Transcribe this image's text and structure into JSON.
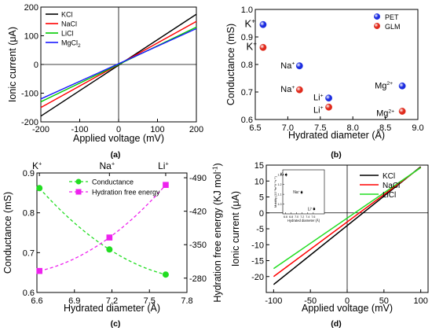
{
  "chart_data": [
    {
      "type": "line",
      "panel_label": "(a)",
      "xlabel": "Applied voltage (mV)",
      "ylabel": "Ionic current (μA)",
      "xlim": [
        -200,
        200
      ],
      "ylim": [
        -200,
        200
      ],
      "xticks": [
        "-200",
        "-100",
        "0",
        "100",
        "200"
      ],
      "yticks": [
        "-200",
        "-100",
        "0",
        "100",
        "200"
      ],
      "legend_position": "top-left",
      "series": [
        {
          "name": "KCl",
          "color": "#000000",
          "x": [
            -200,
            200
          ],
          "y": [
            -180,
            175
          ]
        },
        {
          "name": "NaCl",
          "color": "#ff0000",
          "x": [
            -200,
            200
          ],
          "y": [
            -150,
            150
          ]
        },
        {
          "name": "LiCl",
          "color": "#00cc00",
          "x": [
            -200,
            200
          ],
          "y": [
            -130,
            130
          ]
        },
        {
          "name": "MgCl",
          "name_sub": "2",
          "color": "#1a1aff",
          "x": [
            -200,
            200
          ],
          "y": [
            -120,
            125
          ]
        }
      ]
    },
    {
      "type": "scatter",
      "panel_label": "(b)",
      "xlabel": "Hydrated diameter (Å)",
      "ylabel": "Conductance (mS)",
      "xlim": [
        6.5,
        9.0
      ],
      "ylim": [
        0.6,
        1.0
      ],
      "xticks": [
        "6.5",
        "7.0",
        "7.5",
        "8.0",
        "8.5",
        "9.0"
      ],
      "yticks": [
        "0.6",
        "0.7",
        "0.8",
        "0.9",
        "1.0"
      ],
      "legend_position": "top-right",
      "series": [
        {
          "name": "PET",
          "color": "#1c2de0",
          "x": [
            6.62,
            7.18,
            7.63,
            8.76
          ],
          "y": [
            0.945,
            0.795,
            0.678,
            0.722
          ]
        },
        {
          "name": "GLM",
          "color": "#e02a1c",
          "x": [
            6.62,
            7.18,
            7.63,
            8.76
          ],
          "y": [
            0.862,
            0.708,
            0.645,
            0.63
          ]
        }
      ],
      "point_labels": [
        {
          "base": "K",
          "sup": "+",
          "x": 6.62,
          "y": 0.945
        },
        {
          "base": "K",
          "sup": "+",
          "x": 6.62,
          "y": 0.862
        },
        {
          "base": "Na",
          "sup": "+",
          "x": 7.18,
          "y": 0.795
        },
        {
          "base": "Na",
          "sup": "+",
          "x": 7.18,
          "y": 0.708
        },
        {
          "base": "Li",
          "sup": "+",
          "x": 7.63,
          "y": 0.678
        },
        {
          "base": "Li",
          "sup": "+",
          "x": 7.63,
          "y": 0.645
        },
        {
          "base": "Mg",
          "sup": "2+",
          "x": 8.76,
          "y": 0.722
        },
        {
          "base": "Mg",
          "sup": "2+",
          "x": 8.76,
          "y": 0.63
        }
      ]
    },
    {
      "type": "line",
      "panel_label": "(c)",
      "xlabel": "Hydrated diameter (Å)",
      "ylabel": "Conductance (mS)",
      "y2label": "Hydration free energy (KJ mol",
      "y2label_sup": "-1",
      "y2label_close": ")",
      "xlim": [
        6.6,
        7.8
      ],
      "ylim": [
        0.6,
        0.9
      ],
      "y2lim": [
        -250,
        -500
      ],
      "xticks": [
        "6.6",
        "6.9",
        "7.2",
        "7.5",
        "7.8"
      ],
      "yticks": [
        "0.6",
        "0.7",
        "0.8",
        "0.9"
      ],
      "y2ticks": [
        "-280",
        "-350",
        "-420",
        "-490"
      ],
      "top_labels": [
        {
          "base": "K",
          "sup": "+",
          "x": 6.62
        },
        {
          "base": "Na",
          "sup": "+",
          "x": 7.18
        },
        {
          "base": "Li",
          "sup": "+",
          "x": 7.63
        }
      ],
      "legend_position": "top-center",
      "series": [
        {
          "name": "Conductance",
          "color": "#22dd22",
          "marker": "circle",
          "axis": "left",
          "x": [
            6.62,
            7.18,
            7.63
          ],
          "y": [
            0.862,
            0.708,
            0.645
          ]
        },
        {
          "name": "Hydration free energy",
          "color": "#ee22ee",
          "marker": "square",
          "axis": "right",
          "x": [
            6.62,
            7.18,
            7.63
          ],
          "y": [
            -295,
            -365,
            -475
          ]
        }
      ]
    },
    {
      "type": "line",
      "panel_label": "(d)",
      "xlabel": "Applied voltage (mV)",
      "ylabel": "Ionic current (μA)",
      "xlim": [
        -110,
        110
      ],
      "ylim": [
        -25,
        15
      ],
      "xticks": [
        "-100",
        "-50",
        "0",
        "50",
        "100"
      ],
      "yticks": [
        "-20",
        "-15",
        "-10",
        "-5",
        "0",
        "5",
        "10",
        "15"
      ],
      "legend_position": "top-right",
      "series": [
        {
          "name": "KCl",
          "color": "#000000",
          "x": [
            -100,
            100
          ],
          "y": [
            -22.5,
            14.5
          ]
        },
        {
          "name": "NaCl",
          "color": "#ff0000",
          "x": [
            -100,
            100
          ],
          "y": [
            -20,
            14.3
          ]
        },
        {
          "name": "LiCl",
          "color": "#22dd22",
          "x": [
            -100,
            100
          ],
          "y": [
            -17.5,
            14.2
          ]
        }
      ],
      "inset": {
        "xlabel": "Hydrated diameter (Å)",
        "ylabel": "Mobility (10⁻⁸m²V⁻¹s⁻¹)",
        "xlim": [
          6.5,
          8.0
        ],
        "ylim": [
          0.9,
          1.35
        ],
        "xticks": [
          "6.6",
          "6.8",
          "7.0",
          "7.2",
          "7.4",
          "7.6"
        ],
        "yticks": [
          "1.0",
          "1.1",
          "1.2",
          "1.3"
        ],
        "points": [
          {
            "base": "K",
            "sup": "+",
            "x": 6.62,
            "y": 1.3
          },
          {
            "base": "Na",
            "sup": "+",
            "x": 7.18,
            "y": 1.12
          },
          {
            "base": "Li",
            "sup": "+",
            "x": 7.63,
            "y": 0.95
          }
        ]
      }
    }
  ]
}
